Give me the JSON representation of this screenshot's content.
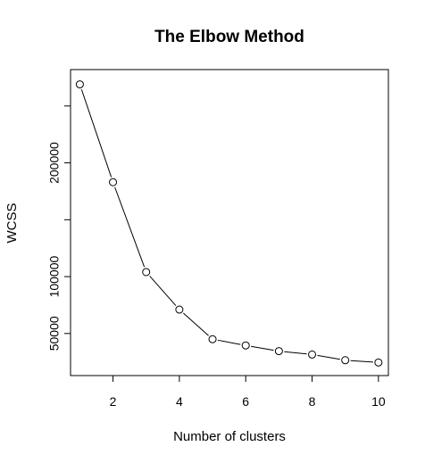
{
  "chart_data": {
    "type": "line",
    "title": "The Elbow Method",
    "xlabel": "Number of clusters",
    "ylabel": "WCSS",
    "x": [
      1,
      2,
      3,
      4,
      5,
      6,
      7,
      8,
      9,
      10
    ],
    "series": [
      {
        "values": [
          269000,
          183000,
          104000,
          71000,
          45000,
          39500,
          34500,
          31500,
          26500,
          24500
        ],
        "color": "#000000",
        "marker": "open-circle"
      }
    ],
    "xlim": [
      0.72,
      10.3
    ],
    "ylim": [
      13000,
      282000
    ],
    "xticks": [
      2,
      4,
      6,
      8,
      10
    ],
    "xtick_labels": [
      "2",
      "4",
      "6",
      "8",
      "10"
    ],
    "yticks": [
      50000,
      100000,
      150000,
      200000,
      250000
    ],
    "ytick_labels": [
      "50000",
      "100000",
      "",
      "200000",
      ""
    ],
    "grid": false,
    "legend": "none"
  }
}
